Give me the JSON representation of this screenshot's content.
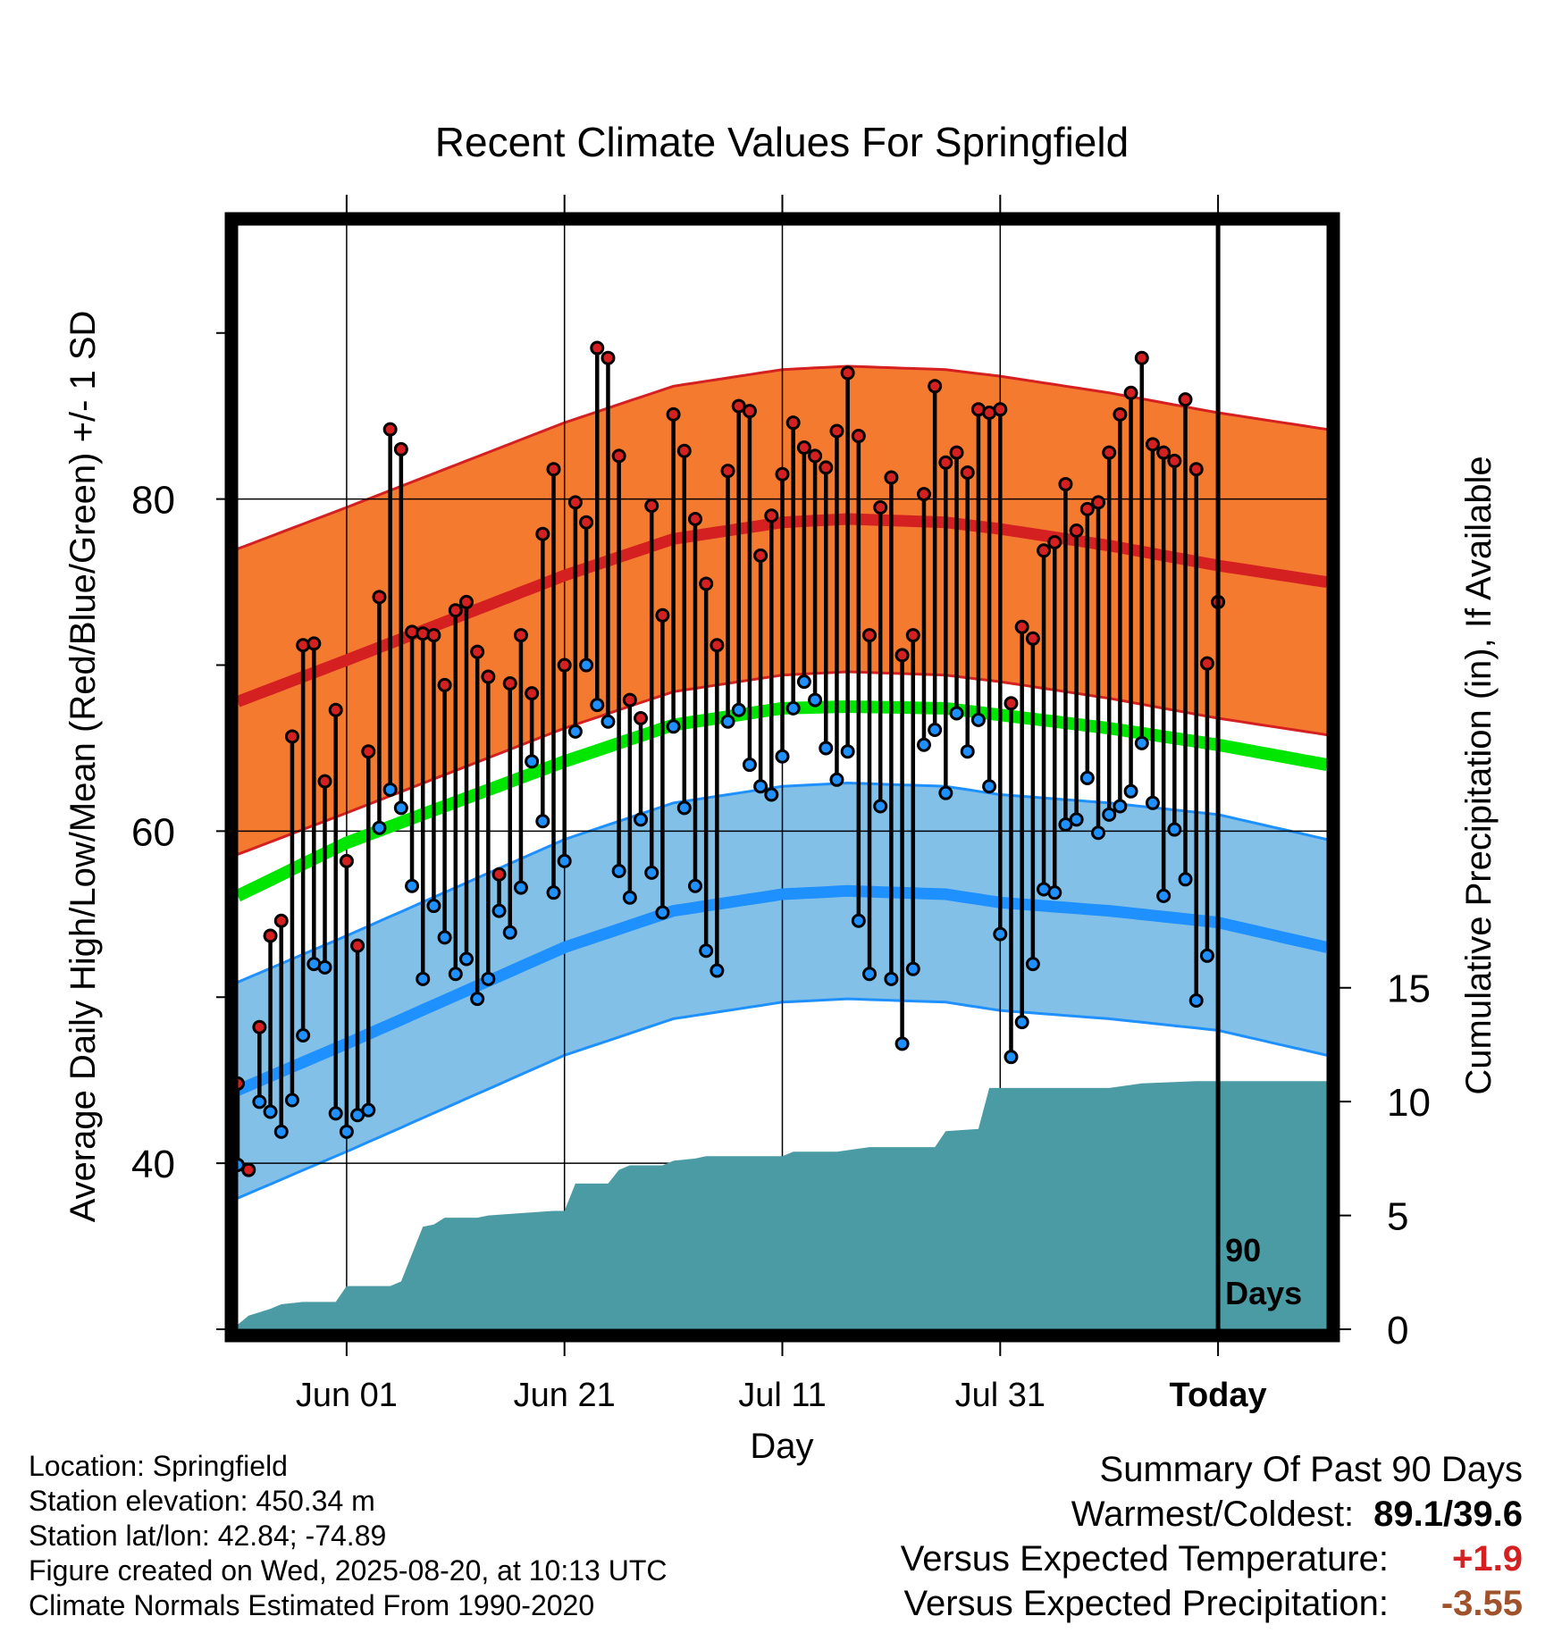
{
  "chart_data": {
    "type": "line",
    "title": "Recent Climate Values For Springfield",
    "xlabel": "Day",
    "ylabel": "Average Daily High/Low/Mean (Red/Blue/Green) +/- 1 SD",
    "y2label": "Cumulative Precipitation (in), If Available",
    "ylim": [
      30,
      96.5
    ],
    "y2lim": [
      0,
      48.5
    ],
    "xlim": [
      0,
      100
    ],
    "y_ticks": [
      "40",
      "60",
      "80"
    ],
    "y2_ticks": [
      "0",
      "5",
      "10",
      "15"
    ],
    "x_tick_days": [
      10,
      30,
      50,
      70,
      90
    ],
    "x_tick_labels": [
      "Jun 01",
      "Jun 21",
      "Jul 11",
      "Jul 31",
      "Today"
    ],
    "grid": true,
    "today_day": 90,
    "today_label_line1": "90",
    "today_label_line2": "Days",
    "normals": {
      "high_mean": [
        [
          0,
          67.8
        ],
        [
          10,
          70.3
        ],
        [
          30,
          75.4
        ],
        [
          40,
          77.6
        ],
        [
          50,
          78.6
        ],
        [
          56,
          78.8
        ],
        [
          65,
          78.6
        ],
        [
          70,
          78.2
        ],
        [
          80,
          77.2
        ],
        [
          90,
          76.0
        ],
        [
          100,
          75.0
        ]
      ],
      "high_sd": 9.2,
      "mean": [
        [
          0,
          56.1
        ],
        [
          10,
          59.3
        ],
        [
          30,
          64.2
        ],
        [
          40,
          66.4
        ],
        [
          50,
          67.4
        ],
        [
          56,
          67.5
        ],
        [
          65,
          67.4
        ],
        [
          70,
          67.0
        ],
        [
          80,
          66.2
        ],
        [
          90,
          65.2
        ],
        [
          100,
          64.0
        ]
      ],
      "low_mean": [
        [
          0,
          44.4
        ],
        [
          10,
          47.2
        ],
        [
          30,
          53.0
        ],
        [
          40,
          55.2
        ],
        [
          50,
          56.2
        ],
        [
          56,
          56.4
        ],
        [
          65,
          56.2
        ],
        [
          70,
          55.7
        ],
        [
          80,
          55.2
        ],
        [
          90,
          54.5
        ],
        [
          100,
          53.0
        ]
      ],
      "low_sd": 6.5
    },
    "series": [
      {
        "name": "High",
        "color": "#d42020",
        "values": [
          [
            0,
            44.8
          ],
          [
            1,
            39.6
          ],
          [
            2,
            48.2
          ],
          [
            3,
            53.7
          ],
          [
            4,
            54.6
          ],
          [
            5,
            65.7
          ],
          [
            6,
            71.2
          ],
          [
            7,
            71.3
          ],
          [
            8,
            63.0
          ],
          [
            9,
            67.3
          ],
          [
            10,
            58.2
          ],
          [
            11,
            53.1
          ],
          [
            12,
            64.8
          ],
          [
            13,
            74.1
          ],
          [
            14,
            84.2
          ],
          [
            15,
            83.0
          ],
          [
            16,
            72.0
          ],
          [
            17,
            71.9
          ],
          [
            18,
            71.8
          ],
          [
            19,
            68.8
          ],
          [
            20,
            73.3
          ],
          [
            21,
            73.8
          ],
          [
            22,
            70.8
          ],
          [
            23,
            69.3
          ],
          [
            24,
            57.4
          ],
          [
            25,
            68.9
          ],
          [
            26,
            71.8
          ],
          [
            27,
            68.3
          ],
          [
            28,
            77.9
          ],
          [
            29,
            81.8
          ],
          [
            30,
            70.0
          ],
          [
            31,
            79.8
          ],
          [
            32,
            78.6
          ],
          [
            33,
            89.1
          ],
          [
            34,
            88.5
          ],
          [
            35,
            82.6
          ],
          [
            36,
            67.9
          ],
          [
            37,
            66.8
          ],
          [
            38,
            79.6
          ],
          [
            39,
            73.0
          ],
          [
            40,
            85.1
          ],
          [
            41,
            82.9
          ],
          [
            42,
            78.8
          ],
          [
            43,
            74.9
          ],
          [
            44,
            71.2
          ],
          [
            45,
            81.7
          ],
          [
            46,
            85.6
          ],
          [
            47,
            85.3
          ],
          [
            48,
            76.6
          ],
          [
            49,
            79.0
          ],
          [
            50,
            81.5
          ],
          [
            51,
            84.6
          ],
          [
            52,
            83.1
          ],
          [
            53,
            82.6
          ],
          [
            54,
            81.9
          ],
          [
            55,
            84.1
          ],
          [
            56,
            87.6
          ],
          [
            57,
            83.8
          ],
          [
            58,
            71.8
          ],
          [
            59,
            79.5
          ],
          [
            60,
            81.3
          ],
          [
            61,
            70.6
          ],
          [
            62,
            71.8
          ],
          [
            63,
            80.3
          ],
          [
            64,
            86.8
          ],
          [
            65,
            82.2
          ],
          [
            66,
            82.8
          ],
          [
            67,
            81.6
          ],
          [
            68,
            85.4
          ],
          [
            69,
            85.2
          ],
          [
            70,
            85.4
          ],
          [
            71,
            67.7
          ],
          [
            72,
            72.3
          ],
          [
            73,
            71.6
          ],
          [
            74,
            76.9
          ],
          [
            75,
            77.4
          ],
          [
            76,
            80.9
          ],
          [
            77,
            78.1
          ],
          [
            78,
            79.4
          ],
          [
            79,
            79.8
          ],
          [
            80,
            82.8
          ],
          [
            81,
            85.1
          ],
          [
            82,
            86.4
          ],
          [
            83,
            88.5
          ],
          [
            84,
            83.3
          ],
          [
            85,
            82.8
          ],
          [
            86,
            82.3
          ],
          [
            87,
            86.0
          ],
          [
            88,
            81.8
          ],
          [
            89,
            70.1
          ],
          [
            90,
            73.8
          ]
        ]
      },
      {
        "name": "Low",
        "color": "#1e90ff",
        "values": [
          [
            0,
            39.9
          ],
          [
            1,
            39.6
          ],
          [
            2,
            43.7
          ],
          [
            3,
            43.1
          ],
          [
            4,
            41.9
          ],
          [
            5,
            43.8
          ],
          [
            6,
            47.7
          ],
          [
            7,
            52.0
          ],
          [
            8,
            51.8
          ],
          [
            9,
            43.0
          ],
          [
            10,
            41.9
          ],
          [
            11,
            42.9
          ],
          [
            12,
            43.2
          ],
          [
            13,
            60.2
          ],
          [
            14,
            62.5
          ],
          [
            15,
            61.4
          ],
          [
            16,
            56.7
          ],
          [
            17,
            51.1
          ],
          [
            18,
            55.5
          ],
          [
            19,
            53.6
          ],
          [
            20,
            51.4
          ],
          [
            21,
            52.3
          ],
          [
            22,
            49.9
          ],
          [
            23,
            51.1
          ],
          [
            24,
            55.2
          ],
          [
            25,
            53.9
          ],
          [
            26,
            56.6
          ],
          [
            27,
            64.2
          ],
          [
            28,
            60.6
          ],
          [
            29,
            56.3
          ],
          [
            30,
            58.2
          ],
          [
            31,
            66.0
          ],
          [
            32,
            70.0
          ],
          [
            33,
            67.6
          ],
          [
            34,
            66.6
          ],
          [
            35,
            57.6
          ],
          [
            36,
            56.0
          ],
          [
            37,
            60.7
          ],
          [
            38,
            57.5
          ],
          [
            39,
            55.1
          ],
          [
            40,
            66.3
          ],
          [
            41,
            61.4
          ],
          [
            42,
            56.7
          ],
          [
            43,
            52.8
          ],
          [
            44,
            51.6
          ],
          [
            45,
            66.6
          ],
          [
            46,
            67.3
          ],
          [
            47,
            64.0
          ],
          [
            48,
            62.7
          ],
          [
            49,
            62.2
          ],
          [
            50,
            64.5
          ],
          [
            51,
            67.4
          ],
          [
            52,
            69.0
          ],
          [
            53,
            67.9
          ],
          [
            54,
            65.0
          ],
          [
            55,
            63.1
          ],
          [
            56,
            64.8
          ],
          [
            57,
            54.6
          ],
          [
            58,
            51.4
          ],
          [
            59,
            61.5
          ],
          [
            60,
            51.1
          ],
          [
            61,
            47.2
          ],
          [
            62,
            51.7
          ],
          [
            63,
            65.2
          ],
          [
            64,
            66.1
          ],
          [
            65,
            62.3
          ],
          [
            66,
            67.1
          ],
          [
            67,
            64.8
          ],
          [
            68,
            66.7
          ],
          [
            69,
            62.7
          ],
          [
            70,
            53.8
          ],
          [
            71,
            46.4
          ],
          [
            72,
            48.5
          ],
          [
            73,
            52.0
          ],
          [
            74,
            56.5
          ],
          [
            75,
            56.3
          ],
          [
            76,
            60.4
          ],
          [
            77,
            60.7
          ],
          [
            78,
            63.2
          ],
          [
            79,
            59.9
          ],
          [
            80,
            61.0
          ],
          [
            81,
            61.5
          ],
          [
            82,
            62.4
          ],
          [
            83,
            65.3
          ],
          [
            84,
            61.7
          ],
          [
            85,
            56.1
          ],
          [
            86,
            60.1
          ],
          [
            87,
            57.1
          ],
          [
            88,
            49.8
          ],
          [
            89,
            52.5
          ]
        ]
      },
      {
        "name": "Cumulative Precipitation",
        "color": "#4a9ba4",
        "values": [
          [
            0,
            0.2
          ],
          [
            1,
            0.6
          ],
          [
            3,
            0.9
          ],
          [
            4,
            1.1
          ],
          [
            6,
            1.2
          ],
          [
            8,
            1.2
          ],
          [
            9,
            1.2
          ],
          [
            10,
            1.9
          ],
          [
            14,
            1.9
          ],
          [
            15,
            2.1
          ],
          [
            16,
            3.3
          ],
          [
            17,
            4.5
          ],
          [
            18,
            4.6
          ],
          [
            19,
            4.9
          ],
          [
            22,
            4.9
          ],
          [
            23,
            5.0
          ],
          [
            26,
            5.1
          ],
          [
            29,
            5.2
          ],
          [
            30,
            5.2
          ],
          [
            31,
            6.4
          ],
          [
            34,
            6.4
          ],
          [
            35,
            7.0
          ],
          [
            36,
            7.2
          ],
          [
            39,
            7.2
          ],
          [
            40,
            7.4
          ],
          [
            42,
            7.5
          ],
          [
            43,
            7.6
          ],
          [
            50,
            7.6
          ],
          [
            51,
            7.8
          ],
          [
            55,
            7.8
          ],
          [
            58,
            8.0
          ],
          [
            64,
            8.0
          ],
          [
            65,
            8.7
          ],
          [
            68,
            8.8
          ],
          [
            69,
            10.6
          ],
          [
            80,
            10.6
          ],
          [
            83,
            10.8
          ],
          [
            88,
            10.9
          ],
          [
            100,
            10.9
          ]
        ]
      }
    ]
  },
  "info": {
    "location": "Location: Springfield",
    "elevation": "Station elevation: 450.34 m",
    "latlon": "Station lat/lon: 42.84; -74.89",
    "created": "Figure created on Wed, 2025-08-20, at 10:13 UTC",
    "normals": "Climate Normals Estimated From 1990-2020"
  },
  "summary": {
    "title": "Summary Of Past 90 Days",
    "warmest_coldest_label": "Warmest/Coldest:",
    "warmest_coldest_value": "89.1/39.6",
    "temp_label": "Versus Expected Temperature:",
    "temp_value": "+1.9",
    "temp_color": "#d42020",
    "precip_label": "Versus Expected Precipitation:",
    "precip_value": "-3.55",
    "precip_color": "#a0522d"
  }
}
